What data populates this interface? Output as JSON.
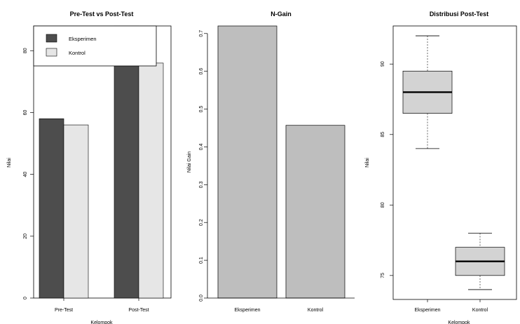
{
  "chart_data": [
    {
      "type": "bar",
      "title": "Pre-Test vs Post-Test",
      "xlabel": "Kelompok",
      "ylabel": "Nilai",
      "categories": [
        "Pre-Test",
        "Post-Test"
      ],
      "series": [
        {
          "name": "Eksperimen",
          "values": [
            58,
            88
          ],
          "color": "#4d4d4d"
        },
        {
          "name": "Kontrol",
          "values": [
            56,
            76
          ],
          "color": "#e6e6e6"
        }
      ],
      "ylim": [
        0,
        88
      ],
      "yticks": [
        0,
        20,
        40,
        60,
        80
      ],
      "legend": "top-left",
      "grid": false
    },
    {
      "type": "bar",
      "title": "N-Gain",
      "xlabel": "",
      "ylabel": "Nilai Gain",
      "categories": [
        "Eksperimen",
        "Kontrol"
      ],
      "values": [
        0.72,
        0.457
      ],
      "color": "#bebebe",
      "ylim": [
        0,
        0.72
      ],
      "yticks": [
        0.0,
        0.1,
        0.2,
        0.3,
        0.4,
        0.5,
        0.6,
        0.7
      ],
      "grid": false
    },
    {
      "type": "box",
      "title": "Distribusi Post-Test",
      "xlabel": "Kelompok",
      "ylabel": "Nilai",
      "categories": [
        "Eksperimen",
        "Kontrol"
      ],
      "boxes": [
        {
          "min": 84,
          "q1": 86.5,
          "median": 88,
          "q3": 89.5,
          "max": 92
        },
        {
          "min": 74,
          "q1": 75,
          "median": 76,
          "q3": 77,
          "max": 78
        }
      ],
      "color": "#d3d3d3",
      "ylim": [
        73.3,
        92.7
      ],
      "yticks": [
        75,
        80,
        85,
        90
      ],
      "grid": false
    }
  ]
}
